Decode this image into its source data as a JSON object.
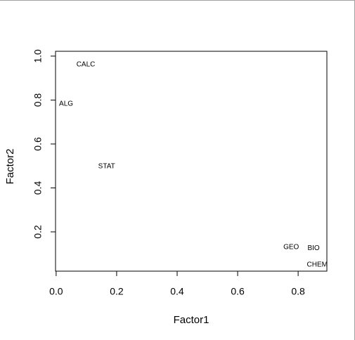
{
  "chart_data": {
    "type": "scatter",
    "x_label": "Factor1",
    "y_label": "Factor2",
    "labels": [
      "CALC",
      "ALG",
      "STAT",
      "GEO",
      "BIO",
      "CHEM"
    ],
    "x": [
      0.098,
      0.033,
      0.167,
      0.777,
      0.851,
      0.863
    ],
    "values": [
      0.962,
      0.782,
      0.498,
      0.13,
      0.126,
      0.05
    ],
    "xlim": [
      -0.002,
      0.895
    ],
    "ylim": [
      0.021,
      1.022
    ],
    "xticks": [
      {
        "value": 0,
        "label": "0.0"
      },
      0.2,
      0.4,
      0.6,
      0.8
    ],
    "yticks": [
      0.2,
      0.4,
      0.6,
      0.8,
      {
        "value": 1,
        "label": "1.0"
      }
    ]
  }
}
